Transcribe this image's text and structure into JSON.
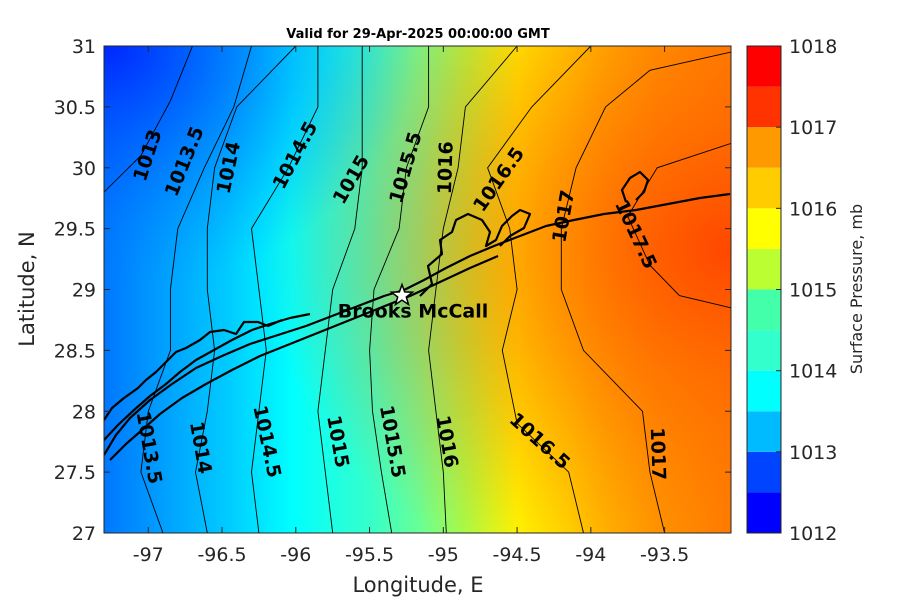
{
  "chart_data": {
    "type": "heatmap",
    "title": "Valid for 29-Apr-2025 00:00:00 GMT",
    "xlabel": "Longitude, E",
    "ylabel": "Latitude, N",
    "xlim": [
      -97.3,
      -93.05
    ],
    "ylim": [
      27,
      31
    ],
    "xticks": [
      -97,
      -96.5,
      -96,
      -95.5,
      -95,
      -94.5,
      -94,
      -93.5
    ],
    "xtick_labels": [
      "-97",
      "-96.5",
      "-96",
      "-95.5",
      "-95",
      "-94.5",
      "-94",
      "-93.5"
    ],
    "yticks": [
      27,
      27.5,
      28,
      28.5,
      29,
      29.5,
      30,
      30.5,
      31
    ],
    "ytick_labels": [
      "27",
      "27.5",
      "28",
      "28.5",
      "29",
      "29.5",
      "30",
      "30.5",
      "31"
    ],
    "colorbar": {
      "label": "Surface Pressure, mb",
      "min": 1012,
      "max": 1018,
      "step": 0.5,
      "ticks": [
        1012,
        1013,
        1014,
        1015,
        1016,
        1017,
        1018
      ],
      "tick_labels": [
        "1012",
        "1013",
        "1014",
        "1015",
        "1016",
        "1017",
        "1018"
      ],
      "colors": [
        "#0000ff",
        "#0044ff",
        "#0088ff",
        "#00bbff",
        "#00ffff",
        "#33ffcc",
        "#44ffaa",
        "#88ff77",
        "#bbff33",
        "#ffff00",
        "#ffcc00",
        "#ff9900",
        "#ff6600",
        "#ff3300",
        "#ff0000"
      ]
    },
    "contours": [
      {
        "level": 1013,
        "label": "1013",
        "points": [
          [
            -97.3,
            29.8
          ],
          [
            -97.05,
            30.1
          ],
          [
            -96.85,
            30.55
          ],
          [
            -96.7,
            31
          ]
        ]
      },
      {
        "level": 1013.5,
        "label": "1013.5",
        "points": [
          [
            -96.9,
            27
          ],
          [
            -97.05,
            27.5
          ],
          [
            -97.0,
            28
          ],
          [
            -96.85,
            28.5
          ],
          [
            -96.85,
            29
          ],
          [
            -96.8,
            29.5
          ],
          [
            -96.62,
            30
          ],
          [
            -96.42,
            30.5
          ],
          [
            -96.3,
            31
          ]
        ]
      },
      {
        "level": 1014,
        "label": "1014",
        "points": [
          [
            -96.6,
            27
          ],
          [
            -96.68,
            27.5
          ],
          [
            -96.6,
            28
          ],
          [
            -96.55,
            28.5
          ],
          [
            -96.6,
            29
          ],
          [
            -96.6,
            29.5
          ],
          [
            -96.55,
            30
          ],
          [
            -96.4,
            30.5
          ],
          [
            -96.0,
            31
          ]
        ]
      },
      {
        "level": 1014.5,
        "label": "1014.5",
        "points": [
          [
            -96.25,
            27
          ],
          [
            -96.3,
            27.5
          ],
          [
            -96.25,
            28
          ],
          [
            -96.2,
            28.5
          ],
          [
            -96.25,
            29
          ],
          [
            -96.3,
            29.5
          ],
          [
            -96.05,
            30
          ],
          [
            -95.85,
            30.5
          ],
          [
            -95.85,
            31
          ]
        ]
      },
      {
        "level": 1015,
        "label": "1015",
        "points": [
          [
            -95.75,
            27
          ],
          [
            -95.8,
            27.5
          ],
          [
            -95.85,
            28
          ],
          [
            -95.8,
            28.5
          ],
          [
            -95.75,
            29
          ],
          [
            -95.6,
            29.5
          ],
          [
            -95.55,
            30
          ],
          [
            -95.55,
            30.5
          ],
          [
            -95.55,
            31
          ]
        ]
      },
      {
        "level": 1015.5,
        "label": "1015.5",
        "points": [
          [
            -95.35,
            27
          ],
          [
            -95.42,
            27.5
          ],
          [
            -95.48,
            28
          ],
          [
            -95.5,
            28.5
          ],
          [
            -95.47,
            29
          ],
          [
            -95.3,
            29.5
          ],
          [
            -95.25,
            30
          ],
          [
            -95.1,
            30.5
          ],
          [
            -95.1,
            31
          ]
        ]
      },
      {
        "level": 1016,
        "label": "1016",
        "points": [
          [
            -94.98,
            27
          ],
          [
            -95.0,
            27.5
          ],
          [
            -95.05,
            28
          ],
          [
            -95.1,
            28.5
          ],
          [
            -95.05,
            29
          ],
          [
            -95.0,
            29.5
          ],
          [
            -94.9,
            30
          ],
          [
            -94.85,
            30.5
          ],
          [
            -94.5,
            31
          ]
        ]
      },
      {
        "level": 1016.5,
        "label": "1016.5",
        "points": [
          [
            -94.05,
            27
          ],
          [
            -94.15,
            27.5
          ],
          [
            -94.5,
            27.9
          ],
          [
            -94.6,
            28.5
          ],
          [
            -94.5,
            29
          ],
          [
            -94.55,
            29.5
          ],
          [
            -94.7,
            30
          ],
          [
            -94.4,
            30.5
          ],
          [
            -94.0,
            31
          ]
        ]
      },
      {
        "level": 1017,
        "label": "1017",
        "points": [
          [
            -93.5,
            27
          ],
          [
            -93.6,
            27.5
          ],
          [
            -93.65,
            28
          ],
          [
            -94.05,
            28.5
          ],
          [
            -94.2,
            29
          ],
          [
            -94.2,
            29.5
          ],
          [
            -94.1,
            30
          ],
          [
            -93.9,
            30.5
          ],
          [
            -93.6,
            30.8
          ],
          [
            -93.05,
            30.95
          ]
        ]
      },
      {
        "level": 1017.5,
        "label": "1017.5",
        "points": [
          [
            -93.05,
            28.85
          ],
          [
            -93.4,
            28.95
          ],
          [
            -93.6,
            29.2
          ],
          [
            -93.75,
            29.6
          ],
          [
            -93.55,
            30
          ],
          [
            -93.05,
            30.2
          ]
        ]
      }
    ],
    "station": {
      "name": "Brooks McCall",
      "lon": -95.28,
      "lat": 28.95
    }
  }
}
